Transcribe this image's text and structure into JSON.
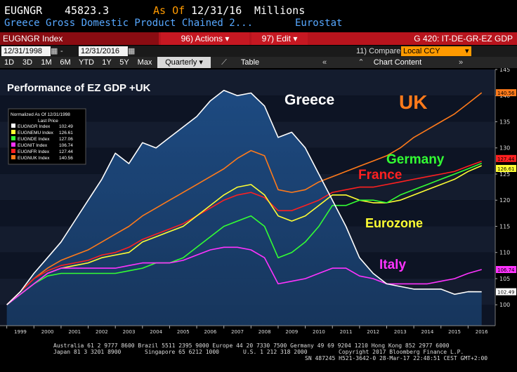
{
  "header": {
    "ticker": "EUGNGR",
    "value": "45823.3",
    "as_of_label": "As Of",
    "as_of_date": "12/31/16",
    "units": "Millions",
    "description": "Greece Gross Domestic Product Chained 2...",
    "source": "Eurostat"
  },
  "toolbar": {
    "security": "EUGNGR Index",
    "actions_label": "96) Actions ▾",
    "edit_label": "97) Edit ▾",
    "function_code": "G 420: IT-DE-GR-EZ GDP"
  },
  "range": {
    "start": "12/31/1998",
    "end": "12/31/2016",
    "compare_label": "11) Compare",
    "compare_value": "Local CCY"
  },
  "periods": [
    "1D",
    "3D",
    "1M",
    "6M",
    "YTD",
    "1Y",
    "5Y",
    "Max"
  ],
  "frequency": "Quarterly ▾",
  "table_label": "Table",
  "chart_content_label": "Chart Content",
  "colors": {
    "background": "#000000",
    "header_red": "#b8141d",
    "greece": "#ffffff",
    "eurozone": "#ffff33",
    "germany": "#33ff33",
    "italy": "#ff33ff",
    "france": "#ff2020",
    "uk": "#ff7a1a"
  },
  "chart_data": {
    "type": "line",
    "title": "Performance of EZ GDP +UK",
    "legend_title": "Normalized As Of 12/31/1998",
    "legend_subtitle": "Last Price",
    "x_ticks": [
      "1999",
      "2000",
      "2001",
      "2002",
      "2003",
      "2004",
      "2005",
      "2006",
      "2007",
      "2008",
      "2009",
      "2010",
      "2011",
      "2012",
      "2013",
      "2014",
      "2015",
      "2016"
    ],
    "xlim": [
      1998.75,
      2017.0
    ],
    "ylim": [
      96,
      145
    ],
    "y_ticks": [
      100,
      105,
      110,
      115,
      120,
      125,
      130,
      135,
      140,
      145
    ],
    "series": [
      {
        "key": "greece",
        "legend": "EUGNGR Index",
        "last": "102.49",
        "label": "Greece",
        "fill": true,
        "points": [
          [
            1999.0,
            100
          ],
          [
            1999.5,
            102.5
          ],
          [
            2000.0,
            106
          ],
          [
            2000.5,
            109
          ],
          [
            2001.0,
            112
          ],
          [
            2001.5,
            116
          ],
          [
            2002.0,
            120
          ],
          [
            2002.5,
            124
          ],
          [
            2003.0,
            129
          ],
          [
            2003.5,
            127
          ],
          [
            2004.0,
            131
          ],
          [
            2004.5,
            130
          ],
          [
            2005.0,
            132
          ],
          [
            2005.5,
            134
          ],
          [
            2006.0,
            136
          ],
          [
            2006.5,
            139
          ],
          [
            2007.0,
            141
          ],
          [
            2007.5,
            140
          ],
          [
            2008.0,
            140.5
          ],
          [
            2008.5,
            138
          ],
          [
            2009.0,
            132
          ],
          [
            2009.5,
            133
          ],
          [
            2010.0,
            130
          ],
          [
            2010.5,
            125
          ],
          [
            2011.0,
            120
          ],
          [
            2011.5,
            115
          ],
          [
            2012.0,
            109
          ],
          [
            2012.5,
            106
          ],
          [
            2013.0,
            104
          ],
          [
            2013.5,
            103.5
          ],
          [
            2014.0,
            103
          ],
          [
            2014.5,
            103
          ],
          [
            2015.0,
            103
          ],
          [
            2015.5,
            102
          ],
          [
            2016.0,
            102.5
          ],
          [
            2016.5,
            102.49
          ]
        ]
      },
      {
        "key": "eurozone",
        "legend": "EUGNEMU Index",
        "last": "126.61",
        "label": "Eurozone",
        "points": [
          [
            1999.0,
            100
          ],
          [
            1999.5,
            102
          ],
          [
            2000.0,
            104
          ],
          [
            2000.5,
            106
          ],
          [
            2001.0,
            107
          ],
          [
            2001.5,
            107.5
          ],
          [
            2002.0,
            108
          ],
          [
            2002.5,
            109
          ],
          [
            2003.0,
            109.5
          ],
          [
            2003.5,
            110
          ],
          [
            2004.0,
            112
          ],
          [
            2004.5,
            113
          ],
          [
            2005.0,
            114
          ],
          [
            2005.5,
            115
          ],
          [
            2006.0,
            117
          ],
          [
            2006.5,
            119
          ],
          [
            2007.0,
            121
          ],
          [
            2007.5,
            122.5
          ],
          [
            2008.0,
            123
          ],
          [
            2008.5,
            121
          ],
          [
            2009.0,
            117
          ],
          [
            2009.5,
            116
          ],
          [
            2010.0,
            117
          ],
          [
            2010.5,
            119
          ],
          [
            2011.0,
            121
          ],
          [
            2011.5,
            121
          ],
          [
            2012.0,
            120
          ],
          [
            2012.5,
            119.5
          ],
          [
            2013.0,
            119.5
          ],
          [
            2013.5,
            120
          ],
          [
            2014.0,
            121
          ],
          [
            2014.5,
            122
          ],
          [
            2015.0,
            123
          ],
          [
            2015.5,
            124
          ],
          [
            2016.0,
            125.5
          ],
          [
            2016.5,
            126.61
          ]
        ]
      },
      {
        "key": "germany",
        "legend": "EUGNDE Index",
        "last": "127.06",
        "label": "Germany",
        "points": [
          [
            1999.0,
            100
          ],
          [
            1999.5,
            102
          ],
          [
            2000.0,
            104
          ],
          [
            2000.5,
            105.5
          ],
          [
            2001.0,
            106
          ],
          [
            2001.5,
            106
          ],
          [
            2002.0,
            106
          ],
          [
            2002.5,
            106
          ],
          [
            2003.0,
            106
          ],
          [
            2003.5,
            106.5
          ],
          [
            2004.0,
            107
          ],
          [
            2004.5,
            108
          ],
          [
            2005.0,
            108
          ],
          [
            2005.5,
            109
          ],
          [
            2006.0,
            111
          ],
          [
            2006.5,
            113
          ],
          [
            2007.0,
            115
          ],
          [
            2007.5,
            116
          ],
          [
            2008.0,
            117
          ],
          [
            2008.5,
            115
          ],
          [
            2009.0,
            109
          ],
          [
            2009.5,
            110
          ],
          [
            2010.0,
            112
          ],
          [
            2010.5,
            115
          ],
          [
            2011.0,
            119
          ],
          [
            2011.5,
            119
          ],
          [
            2012.0,
            120
          ],
          [
            2012.5,
            120
          ],
          [
            2013.0,
            119.5
          ],
          [
            2013.5,
            121
          ],
          [
            2014.0,
            122
          ],
          [
            2014.5,
            123
          ],
          [
            2015.0,
            124
          ],
          [
            2015.5,
            125
          ],
          [
            2016.0,
            126
          ],
          [
            2016.5,
            127.06
          ]
        ]
      },
      {
        "key": "italy",
        "legend": "EUGNIT Index",
        "last": "106.74",
        "label": "Italy",
        "points": [
          [
            1999.0,
            100
          ],
          [
            1999.5,
            102
          ],
          [
            2000.0,
            104
          ],
          [
            2000.5,
            106
          ],
          [
            2001.0,
            107
          ],
          [
            2001.5,
            107
          ],
          [
            2002.0,
            107
          ],
          [
            2002.5,
            107
          ],
          [
            2003.0,
            107
          ],
          [
            2003.5,
            107.5
          ],
          [
            2004.0,
            108
          ],
          [
            2004.5,
            108
          ],
          [
            2005.0,
            108
          ],
          [
            2005.5,
            108.5
          ],
          [
            2006.0,
            109.5
          ],
          [
            2006.5,
            110.5
          ],
          [
            2007.0,
            111
          ],
          [
            2007.5,
            111
          ],
          [
            2008.0,
            110.5
          ],
          [
            2008.5,
            109
          ],
          [
            2009.0,
            104
          ],
          [
            2009.5,
            104.5
          ],
          [
            2010.0,
            105
          ],
          [
            2010.5,
            106
          ],
          [
            2011.0,
            107
          ],
          [
            2011.5,
            107
          ],
          [
            2012.0,
            105.5
          ],
          [
            2012.5,
            105
          ],
          [
            2013.0,
            104
          ],
          [
            2013.5,
            104
          ],
          [
            2014.0,
            104
          ],
          [
            2014.5,
            104
          ],
          [
            2015.0,
            104.5
          ],
          [
            2015.5,
            105
          ],
          [
            2016.0,
            106
          ],
          [
            2016.5,
            106.74
          ]
        ]
      },
      {
        "key": "france",
        "legend": "EUGNFR Index",
        "last": "127.44",
        "label": "France",
        "points": [
          [
            1999.0,
            100
          ],
          [
            1999.5,
            102.5
          ],
          [
            2000.0,
            105
          ],
          [
            2000.5,
            106.5
          ],
          [
            2001.0,
            107.5
          ],
          [
            2001.5,
            108
          ],
          [
            2002.0,
            108.5
          ],
          [
            2002.5,
            109.5
          ],
          [
            2003.0,
            110
          ],
          [
            2003.5,
            111
          ],
          [
            2004.0,
            112.5
          ],
          [
            2004.5,
            113.5
          ],
          [
            2005.0,
            114.5
          ],
          [
            2005.5,
            115.5
          ],
          [
            2006.0,
            117
          ],
          [
            2006.5,
            118.5
          ],
          [
            2007.0,
            120
          ],
          [
            2007.5,
            121
          ],
          [
            2008.0,
            121.5
          ],
          [
            2008.5,
            120.5
          ],
          [
            2009.0,
            118
          ],
          [
            2009.5,
            118
          ],
          [
            2010.0,
            119
          ],
          [
            2010.5,
            120
          ],
          [
            2011.0,
            121.5
          ],
          [
            2011.5,
            122
          ],
          [
            2012.0,
            122.5
          ],
          [
            2012.5,
            122.5
          ],
          [
            2013.0,
            123
          ],
          [
            2013.5,
            123.5
          ],
          [
            2014.0,
            124
          ],
          [
            2014.5,
            124.5
          ],
          [
            2015.0,
            125
          ],
          [
            2015.5,
            125.5
          ],
          [
            2016.0,
            126.5
          ],
          [
            2016.5,
            127.44
          ]
        ]
      },
      {
        "key": "uk",
        "legend": "EUGNUK Index",
        "last": "140.56",
        "label": "UK",
        "points": [
          [
            1999.0,
            100
          ],
          [
            1999.5,
            102.5
          ],
          [
            2000.0,
            105
          ],
          [
            2000.5,
            107
          ],
          [
            2001.0,
            108.5
          ],
          [
            2001.5,
            109.5
          ],
          [
            2002.0,
            110.5
          ],
          [
            2002.5,
            112
          ],
          [
            2003.0,
            113.5
          ],
          [
            2003.5,
            115
          ],
          [
            2004.0,
            117
          ],
          [
            2004.5,
            118.5
          ],
          [
            2005.0,
            120
          ],
          [
            2005.5,
            121.5
          ],
          [
            2006.0,
            123
          ],
          [
            2006.5,
            124.5
          ],
          [
            2007.0,
            126
          ],
          [
            2007.5,
            128
          ],
          [
            2008.0,
            129.5
          ],
          [
            2008.5,
            128.5
          ],
          [
            2009.0,
            122
          ],
          [
            2009.5,
            121.5
          ],
          [
            2010.0,
            122
          ],
          [
            2010.5,
            123.5
          ],
          [
            2011.0,
            124.5
          ],
          [
            2011.5,
            125.5
          ],
          [
            2012.0,
            126.5
          ],
          [
            2012.5,
            127.5
          ],
          [
            2013.0,
            128.5
          ],
          [
            2013.5,
            130
          ],
          [
            2014.0,
            132
          ],
          [
            2014.5,
            133.5
          ],
          [
            2015.0,
            135
          ],
          [
            2015.5,
            136.5
          ],
          [
            2016.0,
            138.5
          ],
          [
            2016.5,
            140.56
          ]
        ]
      }
    ]
  },
  "footer": {
    "line1": "Australia 61 2 9777 8600 Brazil 5511 2395 9000 Europe 44 20 7330 7500 Germany 49 69 9204 1210 Hong Kong 852 2977 6000",
    "line2a": "Japan 81 3 3201 8900",
    "line2b": "Singapore 65 6212 1000",
    "line2c": "U.S. 1 212 318 2000",
    "line2d": "Copyright 2017 Bloomberg Finance L.P.",
    "line3": "SN 487245 H521-3642-0 28-Mar-17 22:48:51 CEST GMT+2:00"
  }
}
